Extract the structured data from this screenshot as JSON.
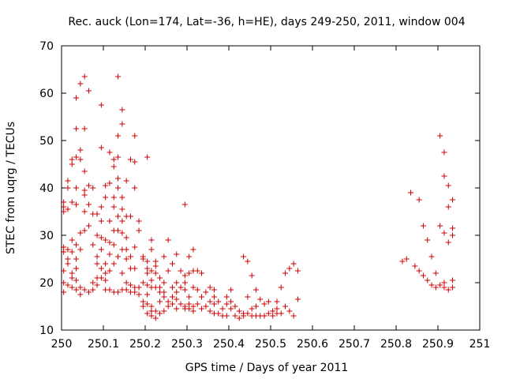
{
  "chart_data": {
    "type": "scatter",
    "title": "Rec. auck (Lon=174, Lat=-36, h=HE), days 249-250, 2011, window 004",
    "xlabel": "GPS time / Days of year 2011",
    "ylabel": "STEC from uqrg / TECUs",
    "xlim": [
      250,
      251
    ],
    "ylim": [
      10,
      70
    ],
    "xticks": [
      250,
      250.1,
      250.2,
      250.3,
      250.4,
      250.5,
      250.6,
      250.7,
      250.8,
      250.9,
      251
    ],
    "xtick_labels": [
      "250",
      "250.1",
      "250.2",
      "250.3",
      "250.4",
      "250.5",
      "250.6",
      "250.7",
      "250.8",
      "250.9",
      "251"
    ],
    "yticks": [
      10,
      20,
      30,
      40,
      50,
      60,
      70
    ],
    "ytick_labels": [
      "10",
      "20",
      "30",
      "40",
      "50",
      "60",
      "70"
    ],
    "grid": false,
    "marker": "+",
    "marker_color": "#cc0000",
    "points": [
      [
        250.005,
        37
      ],
      [
        250.005,
        36
      ],
      [
        250.005,
        35
      ],
      [
        250.005,
        27.5
      ],
      [
        250.005,
        26.5
      ],
      [
        250.005,
        22.5
      ],
      [
        250.005,
        20
      ],
      [
        250.005,
        18
      ],
      [
        250.015,
        41.5
      ],
      [
        250.015,
        40
      ],
      [
        250.015,
        35.5
      ],
      [
        250.015,
        27
      ],
      [
        250.015,
        25
      ],
      [
        250.015,
        24
      ],
      [
        250.015,
        19.5
      ],
      [
        250.025,
        46
      ],
      [
        250.025,
        45
      ],
      [
        250.025,
        37
      ],
      [
        250.025,
        29
      ],
      [
        250.025,
        26.5
      ],
      [
        250.025,
        22
      ],
      [
        250.025,
        21
      ],
      [
        250.025,
        19
      ],
      [
        250.035,
        59
      ],
      [
        250.035,
        52.5
      ],
      [
        250.035,
        46.5
      ],
      [
        250.035,
        40
      ],
      [
        250.035,
        36.5
      ],
      [
        250.035,
        28
      ],
      [
        250.035,
        25
      ],
      [
        250.035,
        23
      ],
      [
        250.035,
        20.5
      ],
      [
        250.035,
        18.5
      ],
      [
        250.045,
        62
      ],
      [
        250.045,
        48
      ],
      [
        250.045,
        46
      ],
      [
        250.045,
        30.5
      ],
      [
        250.045,
        27
      ],
      [
        250.045,
        19
      ],
      [
        250.045,
        17.5
      ],
      [
        250.055,
        63.5
      ],
      [
        250.055,
        52.5
      ],
      [
        250.055,
        43.5
      ],
      [
        250.055,
        39.5
      ],
      [
        250.055,
        38.5
      ],
      [
        250.055,
        35
      ],
      [
        250.055,
        31
      ],
      [
        250.055,
        18.5
      ],
      [
        250.065,
        60.5
      ],
      [
        250.065,
        40.5
      ],
      [
        250.065,
        36.5
      ],
      [
        250.065,
        32
      ],
      [
        250.065,
        18
      ],
      [
        250.075,
        40
      ],
      [
        250.075,
        34.5
      ],
      [
        250.075,
        28
      ],
      [
        250.075,
        20
      ],
      [
        250.075,
        18.5
      ],
      [
        250.085,
        34.5
      ],
      [
        250.085,
        30
      ],
      [
        250.085,
        25.5
      ],
      [
        250.085,
        24
      ],
      [
        250.085,
        21
      ],
      [
        250.085,
        19.5
      ],
      [
        250.095,
        57.5
      ],
      [
        250.095,
        48.5
      ],
      [
        250.095,
        36
      ],
      [
        250.095,
        33
      ],
      [
        250.095,
        29.5
      ],
      [
        250.095,
        27
      ],
      [
        250.095,
        23
      ],
      [
        250.095,
        21
      ],
      [
        250.105,
        40.5
      ],
      [
        250.105,
        38
      ],
      [
        250.105,
        29
      ],
      [
        250.105,
        24
      ],
      [
        250.105,
        22
      ],
      [
        250.105,
        20.5
      ],
      [
        250.105,
        18.5
      ],
      [
        250.115,
        47.5
      ],
      [
        250.115,
        41
      ],
      [
        250.115,
        33
      ],
      [
        250.115,
        28.5
      ],
      [
        250.115,
        26
      ],
      [
        250.115,
        22.5
      ],
      [
        250.115,
        18.5
      ],
      [
        250.125,
        46
      ],
      [
        250.125,
        44.5
      ],
      [
        250.125,
        38
      ],
      [
        250.125,
        36
      ],
      [
        250.125,
        31
      ],
      [
        250.125,
        28
      ],
      [
        250.125,
        24
      ],
      [
        250.125,
        18
      ],
      [
        250.135,
        63.5
      ],
      [
        250.135,
        51
      ],
      [
        250.135,
        46.5
      ],
      [
        250.135,
        42
      ],
      [
        250.135,
        40
      ],
      [
        250.135,
        34
      ],
      [
        250.135,
        31
      ],
      [
        250.135,
        25.5
      ],
      [
        250.135,
        18
      ],
      [
        250.145,
        56.5
      ],
      [
        250.145,
        53.5
      ],
      [
        250.145,
        38
      ],
      [
        250.145,
        35.5
      ],
      [
        250.145,
        33
      ],
      [
        250.145,
        30.5
      ],
      [
        250.145,
        27
      ],
      [
        250.145,
        22
      ],
      [
        250.145,
        18.5
      ],
      [
        250.155,
        41.5
      ],
      [
        250.155,
        34
      ],
      [
        250.155,
        29.5
      ],
      [
        250.155,
        27
      ],
      [
        250.155,
        25
      ],
      [
        250.155,
        20
      ],
      [
        250.155,
        18.5
      ],
      [
        250.165,
        46
      ],
      [
        250.165,
        34
      ],
      [
        250.165,
        25.5
      ],
      [
        250.165,
        23
      ],
      [
        250.165,
        19.5
      ],
      [
        250.165,
        18
      ],
      [
        250.175,
        51
      ],
      [
        250.175,
        45.5
      ],
      [
        250.175,
        40
      ],
      [
        250.175,
        27.5
      ],
      [
        250.175,
        23
      ],
      [
        250.175,
        19
      ],
      [
        250.175,
        18
      ],
      [
        250.185,
        33
      ],
      [
        250.185,
        31
      ],
      [
        250.185,
        19
      ],
      [
        250.185,
        17.5
      ],
      [
        250.195,
        25.5
      ],
      [
        250.195,
        25
      ],
      [
        250.195,
        20
      ],
      [
        250.195,
        16
      ],
      [
        250.195,
        15
      ],
      [
        250.205,
        46.5
      ],
      [
        250.205,
        24.5
      ],
      [
        250.205,
        23
      ],
      [
        250.205,
        22
      ],
      [
        250.205,
        19.5
      ],
      [
        250.205,
        17.5
      ],
      [
        250.205,
        15.5
      ],
      [
        250.205,
        13.5
      ],
      [
        250.215,
        29
      ],
      [
        250.215,
        27
      ],
      [
        250.215,
        22.5
      ],
      [
        250.215,
        20.5
      ],
      [
        250.215,
        19
      ],
      [
        250.215,
        15
      ],
      [
        250.215,
        14
      ],
      [
        250.215,
        13
      ],
      [
        250.225,
        24.5
      ],
      [
        250.225,
        23.5
      ],
      [
        250.225,
        22
      ],
      [
        250.225,
        19
      ],
      [
        250.225,
        14
      ],
      [
        250.225,
        12.5
      ],
      [
        250.235,
        21
      ],
      [
        250.235,
        19
      ],
      [
        250.235,
        18
      ],
      [
        250.235,
        16
      ],
      [
        250.235,
        13.5
      ],
      [
        250.245,
        25.5
      ],
      [
        250.245,
        20
      ],
      [
        250.245,
        18
      ],
      [
        250.245,
        17
      ],
      [
        250.245,
        14
      ],
      [
        250.255,
        29
      ],
      [
        250.255,
        22.5
      ],
      [
        250.255,
        16
      ],
      [
        250.255,
        15
      ],
      [
        250.265,
        24
      ],
      [
        250.265,
        19
      ],
      [
        250.265,
        17
      ],
      [
        250.265,
        15.5
      ],
      [
        250.275,
        26
      ],
      [
        250.275,
        20
      ],
      [
        250.275,
        18
      ],
      [
        250.275,
        16.5
      ],
      [
        250.275,
        14.5
      ],
      [
        250.285,
        22.5
      ],
      [
        250.285,
        19
      ],
      [
        250.285,
        15.5
      ],
      [
        250.295,
        36.5
      ],
      [
        250.295,
        21.5
      ],
      [
        250.295,
        20
      ],
      [
        250.295,
        18.5
      ],
      [
        250.295,
        15
      ],
      [
        250.295,
        14.5
      ],
      [
        250.305,
        25.5
      ],
      [
        250.305,
        22
      ],
      [
        250.305,
        17
      ],
      [
        250.305,
        15.5
      ],
      [
        250.305,
        14.5
      ],
      [
        250.315,
        27
      ],
      [
        250.315,
        22.5
      ],
      [
        250.315,
        19
      ],
      [
        250.315,
        15
      ],
      [
        250.315,
        14
      ],
      [
        250.325,
        22.5
      ],
      [
        250.325,
        18.5
      ],
      [
        250.325,
        15.5
      ],
      [
        250.335,
        22
      ],
      [
        250.335,
        17
      ],
      [
        250.335,
        14.5
      ],
      [
        250.345,
        18
      ],
      [
        250.345,
        15
      ],
      [
        250.355,
        19
      ],
      [
        250.355,
        16
      ],
      [
        250.355,
        14
      ],
      [
        250.365,
        18.5
      ],
      [
        250.365,
        17
      ],
      [
        250.365,
        15.5
      ],
      [
        250.365,
        13.5
      ],
      [
        250.375,
        16
      ],
      [
        250.375,
        13.5
      ],
      [
        250.385,
        14.5
      ],
      [
        250.385,
        13
      ],
      [
        250.395,
        17
      ],
      [
        250.395,
        15.5
      ],
      [
        250.395,
        13
      ],
      [
        250.405,
        18.5
      ],
      [
        250.405,
        16
      ],
      [
        250.405,
        14.5
      ],
      [
        250.415,
        15
      ],
      [
        250.415,
        13
      ],
      [
        250.425,
        14
      ],
      [
        250.425,
        12.5
      ],
      [
        250.435,
        25.5
      ],
      [
        250.435,
        13.5
      ],
      [
        250.435,
        13
      ],
      [
        250.445,
        24.5
      ],
      [
        250.445,
        17
      ],
      [
        250.445,
        13.5
      ],
      [
        250.455,
        21.5
      ],
      [
        250.455,
        14.5
      ],
      [
        250.455,
        13
      ],
      [
        250.465,
        18.5
      ],
      [
        250.465,
        15
      ],
      [
        250.465,
        13
      ],
      [
        250.475,
        16.5
      ],
      [
        250.475,
        13
      ],
      [
        250.485,
        15.5
      ],
      [
        250.485,
        13
      ],
      [
        250.495,
        16
      ],
      [
        250.495,
        13.5
      ],
      [
        250.505,
        14
      ],
      [
        250.505,
        13
      ],
      [
        250.515,
        16
      ],
      [
        250.515,
        14.5
      ],
      [
        250.515,
        13.5
      ],
      [
        250.525,
        19
      ],
      [
        250.525,
        13.5
      ],
      [
        250.535,
        22
      ],
      [
        250.535,
        15
      ],
      [
        250.545,
        23
      ],
      [
        250.545,
        14
      ],
      [
        250.555,
        24
      ],
      [
        250.555,
        13
      ],
      [
        250.565,
        22.5
      ],
      [
        250.565,
        16.5
      ],
      [
        250.815,
        24.5
      ],
      [
        250.825,
        25
      ],
      [
        250.835,
        39
      ],
      [
        250.845,
        23.5
      ],
      [
        250.855,
        37.5
      ],
      [
        250.855,
        22.5
      ],
      [
        250.865,
        32
      ],
      [
        250.865,
        21.5
      ],
      [
        250.875,
        29
      ],
      [
        250.875,
        20.5
      ],
      [
        250.885,
        25.5
      ],
      [
        250.885,
        19.5
      ],
      [
        250.895,
        22
      ],
      [
        250.895,
        19
      ],
      [
        250.905,
        51
      ],
      [
        250.905,
        32
      ],
      [
        250.905,
        19.5
      ],
      [
        250.915,
        47.5
      ],
      [
        250.915,
        42.5
      ],
      [
        250.915,
        30.5
      ],
      [
        250.915,
        20
      ],
      [
        250.915,
        19
      ],
      [
        250.925,
        40.5
      ],
      [
        250.925,
        36
      ],
      [
        250.925,
        28.5
      ],
      [
        250.925,
        18.5
      ],
      [
        250.935,
        37.5
      ],
      [
        250.935,
        31.5
      ],
      [
        250.935,
        30
      ],
      [
        250.935,
        20.5
      ],
      [
        250.935,
        19
      ]
    ]
  }
}
